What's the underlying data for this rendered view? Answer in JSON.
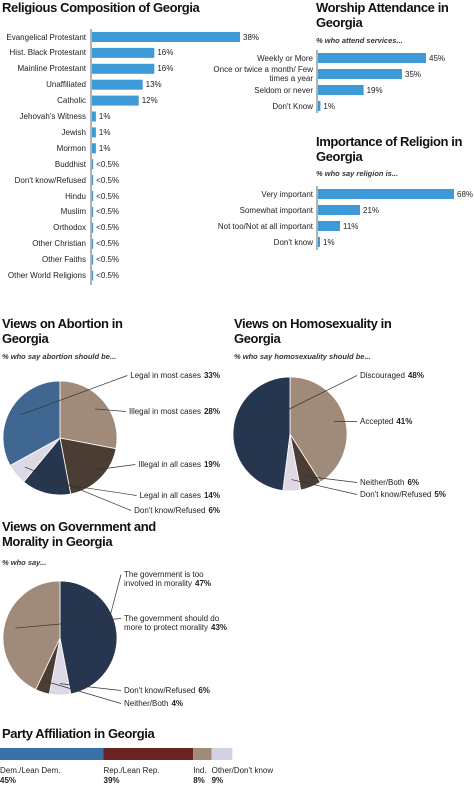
{
  "chart_data": [
    {
      "type": "bar",
      "title": "Religious Composition of Georgia",
      "categories": [
        "Evangelical Protestant",
        "Hist. Black Protestant",
        "Mainline Protestant",
        "Unaffiliated",
        "Catholic",
        "Jehovah's Witness",
        "Jewish",
        "Mormon",
        "Buddhist",
        "Don't know/Refused",
        "Hindu",
        "Muslim",
        "Orthodox",
        "Other Christian",
        "Other Faiths",
        "Other World Religions"
      ],
      "values": [
        38,
        16,
        16,
        13,
        12,
        1,
        1,
        1,
        0.3,
        0.3,
        0.3,
        0.3,
        0.3,
        0.3,
        0.3,
        0.3
      ],
      "value_labels": [
        "38%",
        "16%",
        "16%",
        "13%",
        "12%",
        "1%",
        "1%",
        "1%",
        "<0.5%",
        "<0.5%",
        "<0.5%",
        "<0.5%",
        "<0.5%",
        "<0.5%",
        "<0.5%",
        "<0.5%"
      ],
      "color": "#3d9ad6"
    },
    {
      "type": "bar",
      "title": "Worship Attendance in Georgia",
      "subtitle": "% who attend services...",
      "categories": [
        "Weekly or More",
        "Once or twice a month/ Few times a year",
        "Seldom or never",
        "Don't Know"
      ],
      "values": [
        45,
        35,
        19,
        1
      ],
      "value_labels": [
        "45%",
        "35%",
        "19%",
        "1%"
      ],
      "color": "#3d9ad6"
    },
    {
      "type": "bar",
      "title": "Importance of Religion in Georgia",
      "subtitle": "% who say religion is...",
      "categories": [
        "Very important",
        "Somewhat important",
        "Not too/Not at all important",
        "Don't know"
      ],
      "values": [
        68,
        21,
        11,
        1
      ],
      "value_labels": [
        "68%",
        "21%",
        "11%",
        "1%"
      ],
      "color": "#3d9ad6"
    },
    {
      "type": "pie",
      "title": "Views on Abortion in Georgia",
      "subtitle": "% who say abortion should be...",
      "categories": [
        "Illegal in most cases",
        "Illegal in all cases",
        "Legal in all cases",
        "Don't know/Refused",
        "Legal in most cases"
      ],
      "values": [
        28,
        19,
        14,
        6,
        33
      ],
      "value_labels": [
        "28%",
        "19%",
        "14%",
        "6%",
        "33%"
      ],
      "colors": [
        "#a08a7a",
        "#4b3d33",
        "#27364f",
        "#dcd8e4",
        "#3f6791"
      ]
    },
    {
      "type": "pie",
      "title": "Views on Homosexuality in Georgia",
      "subtitle": "% who say homosexuality should be...",
      "categories": [
        "Accepted",
        "Neither/Both",
        "Don't know/Refused",
        "Discouraged"
      ],
      "values": [
        41,
        6,
        5,
        48
      ],
      "value_labels": [
        "41%",
        "6%",
        "5%",
        "48%"
      ],
      "colors": [
        "#a08a7a",
        "#4b3d33",
        "#dcd8e4",
        "#27364f"
      ]
    },
    {
      "type": "pie",
      "title": "Views on Government and Morality in Georgia",
      "subtitle": "% who say...",
      "categories": [
        "The government is too involved in morality",
        "Don't know/Refused",
        "Neither/Both",
        "The government should do more to protect morality"
      ],
      "values": [
        47,
        6,
        4,
        43
      ],
      "value_labels": [
        "47%",
        "6%",
        "4%",
        "43%"
      ],
      "colors": [
        "#27364f",
        "#dcd8e4",
        "#4b3d33",
        "#a08a7a"
      ]
    },
    {
      "type": "stacked_bar",
      "title": "Party Affiliation in Georgia",
      "series": [
        {
          "name": "Dem./Lean Dem.",
          "color": "#3a70a8",
          "values": [
            45
          ],
          "value_labels": [
            "45%"
          ]
        },
        {
          "name": "Rep./Lean Rep.",
          "color": "#6a2222",
          "values": [
            39
          ],
          "value_labels": [
            "39%"
          ]
        },
        {
          "name": "Ind.",
          "color": "#a08a7a",
          "values": [
            8
          ],
          "value_labels": [
            "8%"
          ]
        },
        {
          "name": "Other/Don't know",
          "color": "#d4d2e2",
          "values": [
            9
          ],
          "value_labels": [
            "9%"
          ]
        }
      ]
    }
  ]
}
